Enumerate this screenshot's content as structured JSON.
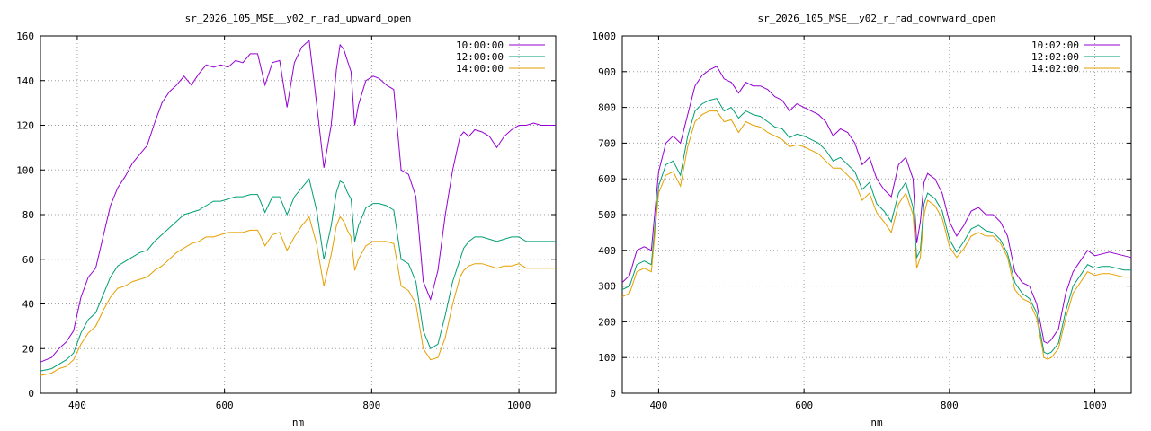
{
  "chart_data": [
    {
      "type": "line",
      "title": "sr_2026_105_MSE__y02_r_rad_upward_open",
      "xlabel": "nm",
      "ylabel": "",
      "xlim": [
        350,
        1050
      ],
      "ylim": [
        0,
        160
      ],
      "xticks": [
        400,
        600,
        800,
        1000
      ],
      "yticks": [
        0,
        20,
        40,
        60,
        80,
        100,
        120,
        140,
        160
      ],
      "grid": true,
      "legend": "top-right",
      "series": [
        {
          "name": "10:00:00",
          "color": "#9400d3",
          "x": [
            350,
            365,
            375,
            385,
            395,
            405,
            415,
            425,
            435,
            445,
            455,
            465,
            475,
            485,
            495,
            505,
            515,
            525,
            535,
            545,
            555,
            565,
            575,
            585,
            595,
            605,
            615,
            625,
            635,
            645,
            655,
            665,
            675,
            685,
            695,
            705,
            715,
            725,
            735,
            745,
            752,
            757,
            762,
            767,
            772,
            777,
            782,
            792,
            802,
            810,
            820,
            830,
            840,
            850,
            860,
            870,
            880,
            890,
            900,
            910,
            920,
            925,
            932,
            940,
            950,
            960,
            970,
            980,
            990,
            1000,
            1010,
            1020,
            1030,
            1040,
            1050
          ],
          "y": [
            14,
            16,
            20,
            23,
            28,
            43,
            52,
            56,
            70,
            84,
            92,
            97,
            103,
            107,
            111,
            121,
            130,
            135,
            138,
            142,
            138,
            143,
            147,
            146,
            147,
            146,
            149,
            148,
            152,
            152,
            138,
            148,
            149,
            128,
            148,
            155,
            158,
            130,
            101,
            120,
            145,
            156,
            154,
            149,
            144,
            120,
            129,
            140,
            142,
            141,
            138,
            136,
            100,
            98,
            88,
            50,
            42,
            55,
            80,
            100,
            115,
            117,
            115,
            118,
            117,
            115,
            110,
            115,
            118,
            120,
            120,
            121,
            120,
            120,
            120
          ]
        },
        {
          "name": "12:00:00",
          "color": "#009e73",
          "x": [
            350,
            365,
            375,
            385,
            395,
            405,
            415,
            425,
            435,
            445,
            455,
            465,
            475,
            485,
            495,
            505,
            515,
            525,
            535,
            545,
            555,
            565,
            575,
            585,
            595,
            605,
            615,
            625,
            635,
            645,
            655,
            665,
            675,
            685,
            695,
            705,
            715,
            725,
            735,
            745,
            752,
            757,
            762,
            767,
            772,
            777,
            782,
            792,
            802,
            810,
            820,
            830,
            840,
            850,
            860,
            870,
            880,
            890,
            900,
            910,
            920,
            925,
            932,
            940,
            950,
            960,
            970,
            980,
            990,
            1000,
            1010,
            1020,
            1030,
            1040,
            1050
          ],
          "y": [
            10,
            11,
            13,
            15,
            18,
            27,
            33,
            36,
            44,
            52,
            57,
            59,
            61,
            63,
            64,
            68,
            71,
            74,
            77,
            80,
            81,
            82,
            84,
            86,
            86,
            87,
            88,
            88,
            89,
            89,
            81,
            88,
            88,
            80,
            88,
            92,
            96,
            82,
            60,
            75,
            90,
            95,
            94,
            90,
            87,
            68,
            75,
            83,
            85,
            85,
            84,
            82,
            60,
            58,
            50,
            28,
            20,
            22,
            35,
            50,
            60,
            65,
            68,
            70,
            70,
            69,
            68,
            69,
            70,
            70,
            68,
            68,
            68,
            68,
            68
          ]
        },
        {
          "name": "14:00:00",
          "color": "#e69f00",
          "x": [
            350,
            365,
            375,
            385,
            395,
            405,
            415,
            425,
            435,
            445,
            455,
            465,
            475,
            485,
            495,
            505,
            515,
            525,
            535,
            545,
            555,
            565,
            575,
            585,
            595,
            605,
            615,
            625,
            635,
            645,
            655,
            665,
            675,
            685,
            695,
            705,
            715,
            725,
            735,
            745,
            752,
            757,
            762,
            767,
            772,
            777,
            782,
            792,
            802,
            810,
            820,
            830,
            840,
            850,
            860,
            870,
            880,
            890,
            900,
            910,
            920,
            925,
            932,
            940,
            950,
            960,
            970,
            980,
            990,
            1000,
            1010,
            1020,
            1030,
            1040,
            1050
          ],
          "y": [
            8,
            9,
            11,
            12,
            15,
            22,
            27,
            30,
            37,
            43,
            47,
            48,
            50,
            51,
            52,
            55,
            57,
            60,
            63,
            65,
            67,
            68,
            70,
            70,
            71,
            72,
            72,
            72,
            73,
            73,
            66,
            71,
            72,
            64,
            70,
            75,
            79,
            67,
            48,
            62,
            75,
            79,
            77,
            73,
            70,
            55,
            60,
            66,
            68,
            68,
            68,
            67,
            48,
            46,
            40,
            20,
            15,
            16,
            25,
            40,
            52,
            55,
            57,
            58,
            58,
            57,
            56,
            57,
            57,
            58,
            56,
            56,
            56,
            56,
            56
          ]
        }
      ]
    },
    {
      "type": "line",
      "title": "sr_2026_105_MSE__y02_r_rad_downward_open",
      "xlabel": "nm",
      "ylabel": "",
      "xlim": [
        350,
        1050
      ],
      "ylim": [
        0,
        1000
      ],
      "xticks": [
        400,
        600,
        800,
        1000
      ],
      "yticks": [
        0,
        100,
        200,
        300,
        400,
        500,
        600,
        700,
        800,
        900,
        1000
      ],
      "grid": true,
      "legend": "top-right",
      "series": [
        {
          "name": "10:02:00",
          "color": "#9400d3",
          "x": [
            350,
            360,
            370,
            380,
            390,
            400,
            410,
            420,
            430,
            440,
            450,
            460,
            470,
            480,
            490,
            500,
            510,
            520,
            530,
            540,
            550,
            560,
            570,
            580,
            590,
            600,
            610,
            620,
            630,
            640,
            650,
            660,
            670,
            680,
            690,
            700,
            710,
            720,
            730,
            740,
            750,
            755,
            760,
            765,
            770,
            780,
            790,
            800,
            810,
            820,
            830,
            840,
            850,
            860,
            870,
            880,
            890,
            900,
            910,
            920,
            930,
            935,
            940,
            950,
            960,
            970,
            980,
            990,
            1000,
            1010,
            1020,
            1030,
            1040,
            1050
          ],
          "y": [
            310,
            330,
            400,
            410,
            400,
            620,
            700,
            720,
            700,
            780,
            860,
            890,
            905,
            915,
            880,
            870,
            840,
            870,
            860,
            860,
            850,
            830,
            820,
            790,
            810,
            800,
            790,
            780,
            760,
            720,
            740,
            730,
            700,
            640,
            660,
            600,
            570,
            550,
            640,
            660,
            600,
            420,
            480,
            590,
            615,
            600,
            560,
            480,
            440,
            470,
            510,
            520,
            500,
            500,
            480,
            440,
            340,
            310,
            300,
            250,
            145,
            140,
            150,
            180,
            280,
            340,
            370,
            400,
            385,
            390,
            395,
            390,
            385,
            380
          ]
        },
        {
          "name": "12:02:00",
          "color": "#009e73",
          "x": [
            350,
            360,
            370,
            380,
            390,
            400,
            410,
            420,
            430,
            440,
            450,
            460,
            470,
            480,
            490,
            500,
            510,
            520,
            530,
            540,
            550,
            560,
            570,
            580,
            590,
            600,
            610,
            620,
            630,
            640,
            650,
            660,
            670,
            680,
            690,
            700,
            710,
            720,
            730,
            740,
            750,
            755,
            760,
            765,
            770,
            780,
            790,
            800,
            810,
            820,
            830,
            840,
            850,
            860,
            870,
            880,
            890,
            900,
            910,
            920,
            930,
            935,
            940,
            950,
            960,
            970,
            980,
            990,
            1000,
            1010,
            1020,
            1030,
            1040,
            1050
          ],
          "y": [
            290,
            300,
            360,
            370,
            360,
            580,
            640,
            650,
            610,
            720,
            790,
            810,
            820,
            825,
            790,
            800,
            770,
            790,
            780,
            775,
            760,
            745,
            740,
            715,
            725,
            720,
            710,
            700,
            680,
            650,
            660,
            640,
            620,
            570,
            590,
            530,
            510,
            480,
            560,
            590,
            520,
            380,
            400,
            530,
            560,
            545,
            510,
            430,
            395,
            425,
            460,
            470,
            455,
            450,
            430,
            390,
            310,
            280,
            265,
            225,
            115,
            110,
            115,
            140,
            230,
            300,
            330,
            360,
            350,
            355,
            355,
            350,
            345,
            345
          ]
        },
        {
          "name": "14:02:00",
          "color": "#e69f00",
          "x": [
            350,
            360,
            370,
            380,
            390,
            400,
            410,
            420,
            430,
            440,
            450,
            460,
            470,
            480,
            490,
            500,
            510,
            520,
            530,
            540,
            550,
            560,
            570,
            580,
            590,
            600,
            610,
            620,
            630,
            640,
            650,
            660,
            670,
            680,
            690,
            700,
            710,
            720,
            730,
            740,
            750,
            755,
            760,
            765,
            770,
            780,
            790,
            800,
            810,
            820,
            830,
            840,
            850,
            860,
            870,
            880,
            890,
            900,
            910,
            920,
            930,
            935,
            940,
            950,
            960,
            970,
            980,
            990,
            1000,
            1010,
            1020,
            1030,
            1040,
            1050
          ],
          "y": [
            270,
            280,
            340,
            350,
            340,
            560,
            610,
            620,
            580,
            690,
            760,
            780,
            790,
            790,
            760,
            765,
            730,
            760,
            750,
            745,
            730,
            720,
            710,
            690,
            695,
            690,
            680,
            670,
            650,
            630,
            630,
            610,
            590,
            540,
            560,
            505,
            480,
            450,
            530,
            560,
            500,
            350,
            380,
            500,
            540,
            525,
            490,
            410,
            380,
            405,
            440,
            450,
            440,
            440,
            420,
            380,
            290,
            265,
            255,
            210,
            100,
            95,
            100,
            125,
            210,
            280,
            310,
            340,
            330,
            335,
            335,
            330,
            325,
            325
          ]
        }
      ]
    }
  ]
}
